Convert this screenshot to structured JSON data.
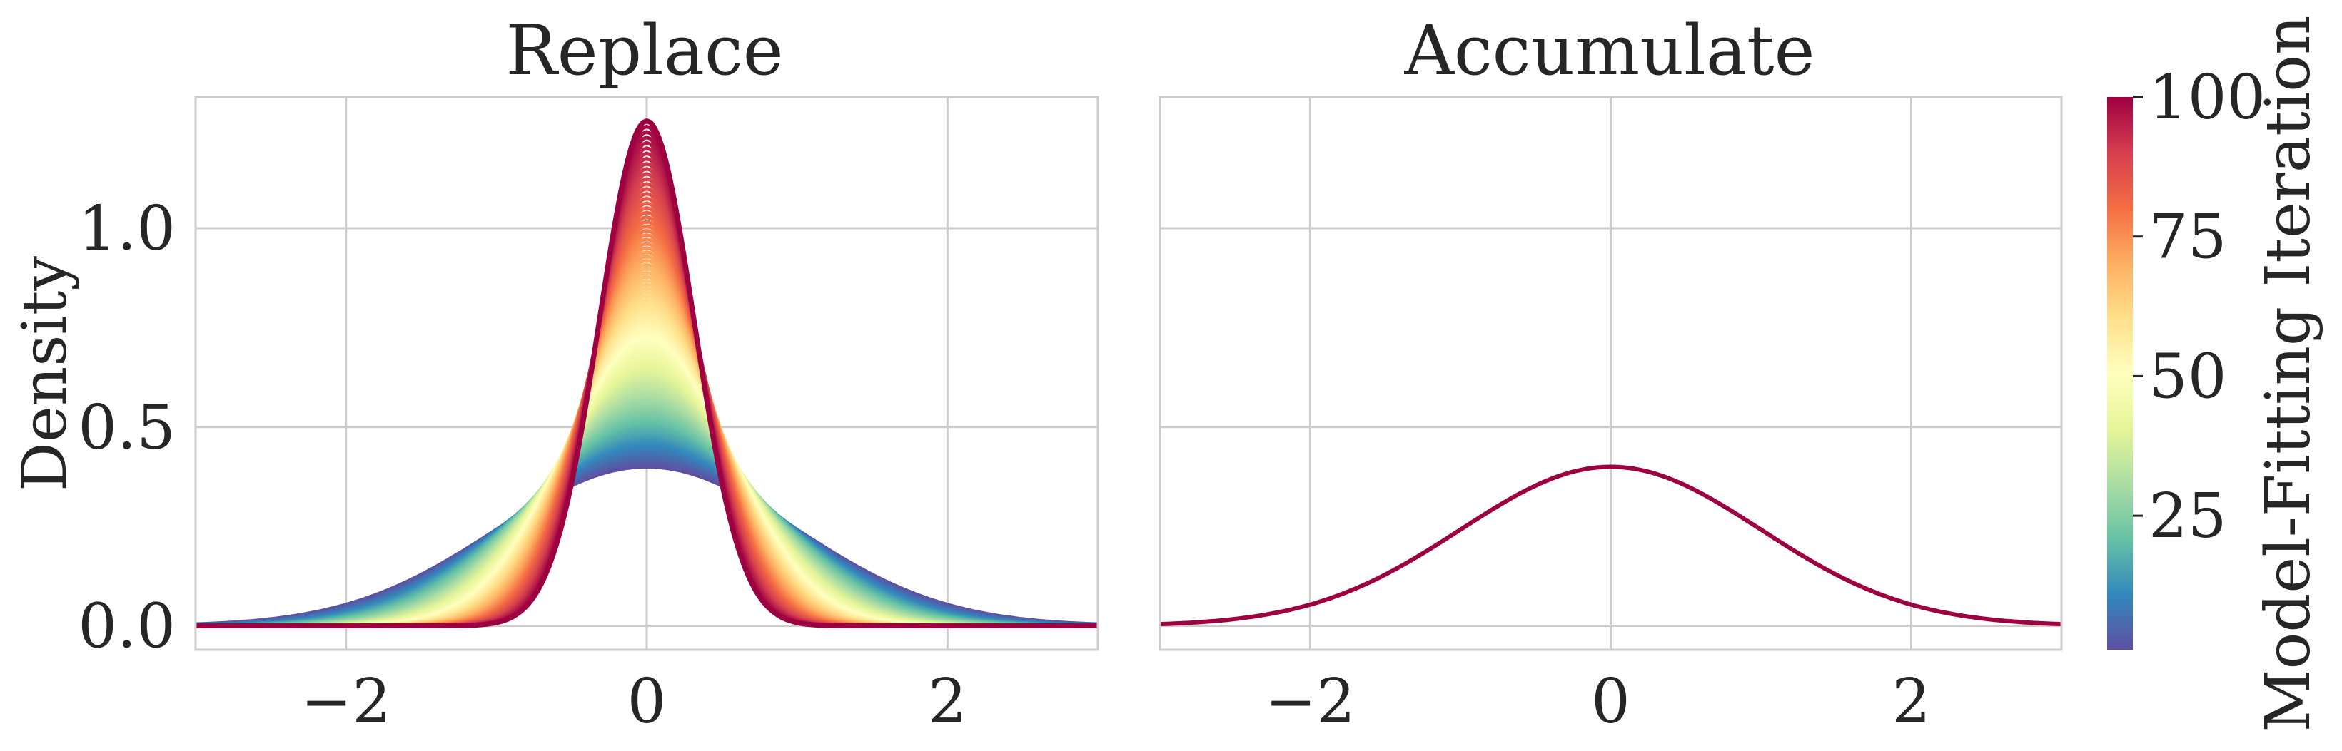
{
  "chart_data": [
    {
      "type": "line",
      "title": "Replace",
      "ylabel": "Density",
      "xlabel": "",
      "xlim": [
        -3,
        3
      ],
      "ylim": [
        -0.06,
        1.33
      ],
      "xticks": [
        -2,
        0,
        2
      ],
      "xtick_labels": [
        "−2",
        "0",
        "2"
      ],
      "yticks": [
        0,
        0.5,
        1
      ],
      "ytick_labels": [
        "0.0",
        "0.5",
        "1.0"
      ],
      "grid": true,
      "colormap": "Spectral_r",
      "colorbar_label": "Model-Fitting Iteration",
      "colorbar_ticks": [
        25,
        50,
        75,
        100
      ],
      "colorbar_range": [
        1,
        100
      ],
      "curve_family": "gaussian",
      "series": [
        {
          "iterations": [
            1,
            100
          ],
          "mean": 0.0,
          "peak_density_start": 0.4,
          "peak_density_end": 1.27
        }
      ]
    },
    {
      "type": "line",
      "title": "Accumulate",
      "xlabel": "",
      "ylabel": "",
      "xlim": [
        -3,
        3
      ],
      "ylim": [
        -0.06,
        1.33
      ],
      "xticks": [
        -2,
        0,
        2
      ],
      "xtick_labels": [
        "−2",
        "0",
        "2"
      ],
      "grid": true,
      "series": [
        {
          "iterations": [
            1,
            100
          ],
          "mean": 0.0,
          "peak_density": 0.4
        }
      ]
    }
  ],
  "colors": {
    "frame": "#cccccc",
    "text": "#262626",
    "final_curve": "#9e0142"
  }
}
